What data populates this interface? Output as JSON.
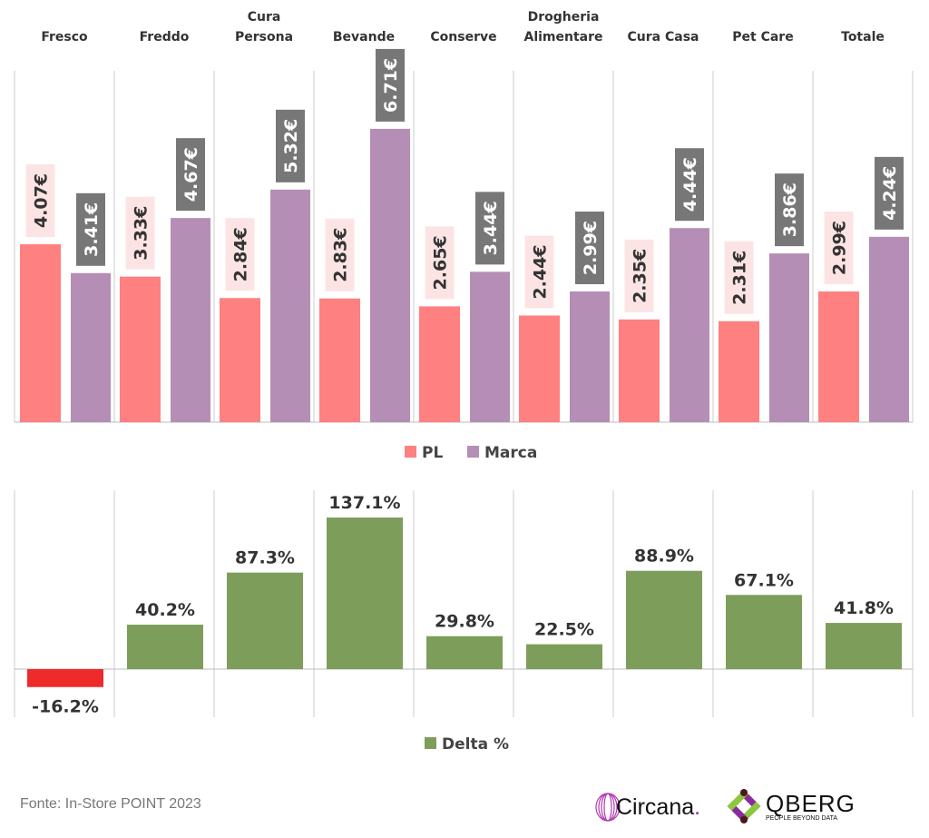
{
  "chart_data": [
    {
      "type": "bar",
      "categories": [
        [
          "Fresco"
        ],
        [
          "Freddo"
        ],
        [
          "Cura",
          "Persona"
        ],
        [
          "Bevande"
        ],
        [
          "Conserve"
        ],
        [
          "Drogheria",
          "Alimentare"
        ],
        [
          "Cura Casa"
        ],
        [
          "Pet Care"
        ],
        [
          "Totale"
        ]
      ],
      "series": [
        {
          "name": "PL",
          "color": "#ff8080",
          "values": [
            4.07,
            3.33,
            2.84,
            2.83,
            2.65,
            2.44,
            2.35,
            2.31,
            2.99
          ],
          "labels": [
            "4.07€",
            "3.33€",
            "2.84€",
            "2.83€",
            "2.65€",
            "2.44€",
            "2.35€",
            "2.31€",
            "2.99€"
          ]
        },
        {
          "name": "Marca",
          "color": "#b48eb4",
          "values": [
            3.41,
            4.67,
            5.32,
            6.71,
            3.44,
            2.99,
            4.44,
            3.86,
            4.24
          ],
          "labels": [
            "3.41€",
            "4.67€",
            "5.32€",
            "6.71€",
            "3.44€",
            "2.99€",
            "4.44€",
            "3.86€",
            "4.24€"
          ]
        }
      ],
      "legend": "bottom"
    },
    {
      "type": "bar",
      "series": [
        {
          "name": "Delta %",
          "color": "#7d9e5a",
          "negative_color": "#ee2a2a",
          "values": [
            -16.2,
            40.2,
            87.3,
            137.1,
            29.8,
            22.5,
            88.9,
            67.1,
            41.8
          ],
          "labels": [
            "-16.2%",
            "40.2%",
            "87.3%",
            "137.1%",
            "29.8%",
            "22.5%",
            "88.9%",
            "67.1%",
            "41.8%"
          ]
        }
      ],
      "legend": "bottom"
    }
  ],
  "footer": {
    "source": "Fonte: In-Store POINT 2023"
  },
  "logos": {
    "circana": "Circana.",
    "qberg": "QBERG",
    "qberg_tagline": "PEOPLE BEYOND DATA"
  }
}
